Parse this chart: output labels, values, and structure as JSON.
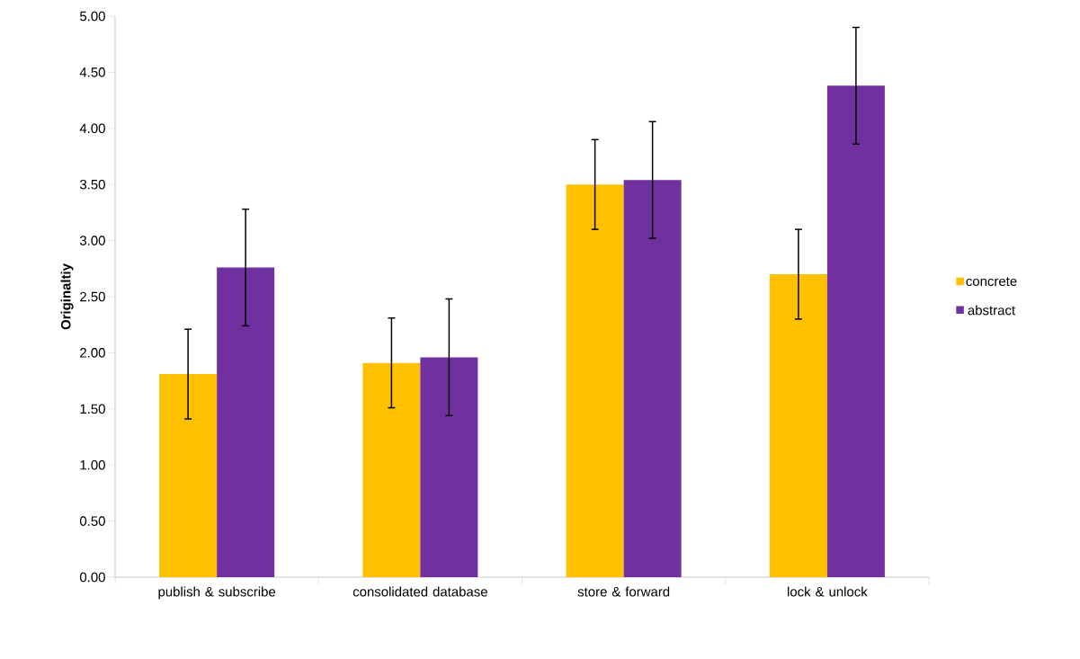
{
  "chart_data": {
    "type": "bar",
    "ylabel": "Originaltiy",
    "categories": [
      "publish & subscribe",
      "consolidated database",
      "store & forward",
      "lock & unlock"
    ],
    "series": [
      {
        "name": "concrete",
        "color": "#ffc000",
        "values": [
          1.81,
          1.91,
          3.5,
          2.7
        ],
        "errors": [
          0.4,
          0.4,
          0.4,
          0.4
        ]
      },
      {
        "name": "abstract",
        "color": "#7030a0",
        "values": [
          2.76,
          1.96,
          3.54,
          4.38
        ],
        "errors": [
          0.52,
          0.52,
          0.52,
          0.52
        ]
      }
    ],
    "ylim": [
      0,
      5
    ],
    "yticks": [
      {
        "value": 0,
        "label": "0.00"
      },
      {
        "value": 0.5,
        "label": "0.50"
      },
      {
        "value": 1,
        "label": "1.00"
      },
      {
        "value": 1.5,
        "label": "1.50"
      },
      {
        "value": 2,
        "label": "2.00"
      },
      {
        "value": 2.5,
        "label": "2.50"
      },
      {
        "value": 3,
        "label": "3.00"
      },
      {
        "value": 3.5,
        "label": "3.50"
      },
      {
        "value": 4,
        "label": "4.00"
      },
      {
        "value": 4.5,
        "label": "4.50"
      },
      {
        "value": 5,
        "label": "5.00"
      }
    ],
    "grid": false,
    "legend": "right"
  }
}
